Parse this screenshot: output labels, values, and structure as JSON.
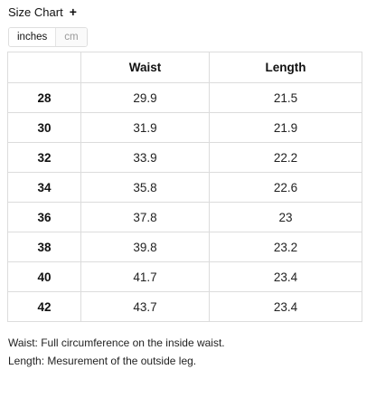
{
  "header": {
    "title": "Size Chart",
    "expand_symbol": "+"
  },
  "unit_toggle": {
    "options": [
      "inches",
      "cm"
    ],
    "selected": "inches"
  },
  "table": {
    "columns": [
      "",
      "Waist",
      "Length"
    ],
    "rows": [
      {
        "size": "28",
        "waist": "29.9",
        "length": "21.5"
      },
      {
        "size": "30",
        "waist": "31.9",
        "length": "21.9"
      },
      {
        "size": "32",
        "waist": "33.9",
        "length": "22.2"
      },
      {
        "size": "34",
        "waist": "35.8",
        "length": "22.6"
      },
      {
        "size": "36",
        "waist": "37.8",
        "length": "23"
      },
      {
        "size": "38",
        "waist": "39.8",
        "length": "23.2"
      },
      {
        "size": "40",
        "waist": "41.7",
        "length": "23.4"
      },
      {
        "size": "42",
        "waist": "43.7",
        "length": "23.4"
      }
    ]
  },
  "notes": {
    "waist": "Waist: Full circumference on the inside waist.",
    "length": "Length: Mesurement of the outside leg."
  }
}
